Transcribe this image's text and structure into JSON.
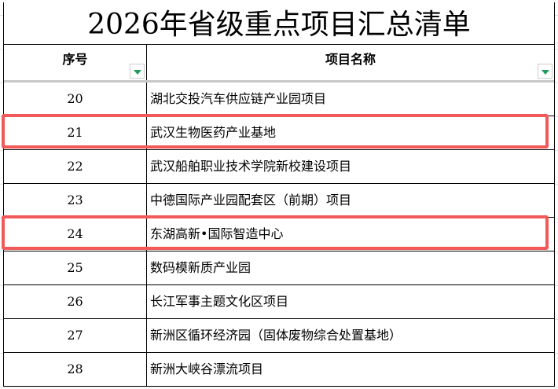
{
  "title": "2026年省级重点项目汇总清单",
  "headers": {
    "seq": "序号",
    "name": "项目名称"
  },
  "rows": [
    {
      "seq": "20",
      "name": "湖北交投汽车供应链产业园项目"
    },
    {
      "seq": "21",
      "name": "武汉生物医药产业基地",
      "highlighted": true
    },
    {
      "seq": "22",
      "name": "武汉船舶职业技术学院新校建设项目"
    },
    {
      "seq": "23",
      "name": "中德国际产业园配套区（前期）项目"
    },
    {
      "seq": "24",
      "name": "东湖高新•国际智造中心",
      "highlighted": true
    },
    {
      "seq": "25",
      "name": "数码模新质产业园"
    },
    {
      "seq": "26",
      "name": "长江军事主题文化区项目"
    },
    {
      "seq": "27",
      "name": "新洲区循环经济园（固体废物综合处置基地）"
    },
    {
      "seq": "28",
      "name": "新洲大峡谷漂流项目"
    }
  ],
  "colors": {
    "highlight": "#f25a5a",
    "filter_arrow": "#1e9e5a"
  }
}
